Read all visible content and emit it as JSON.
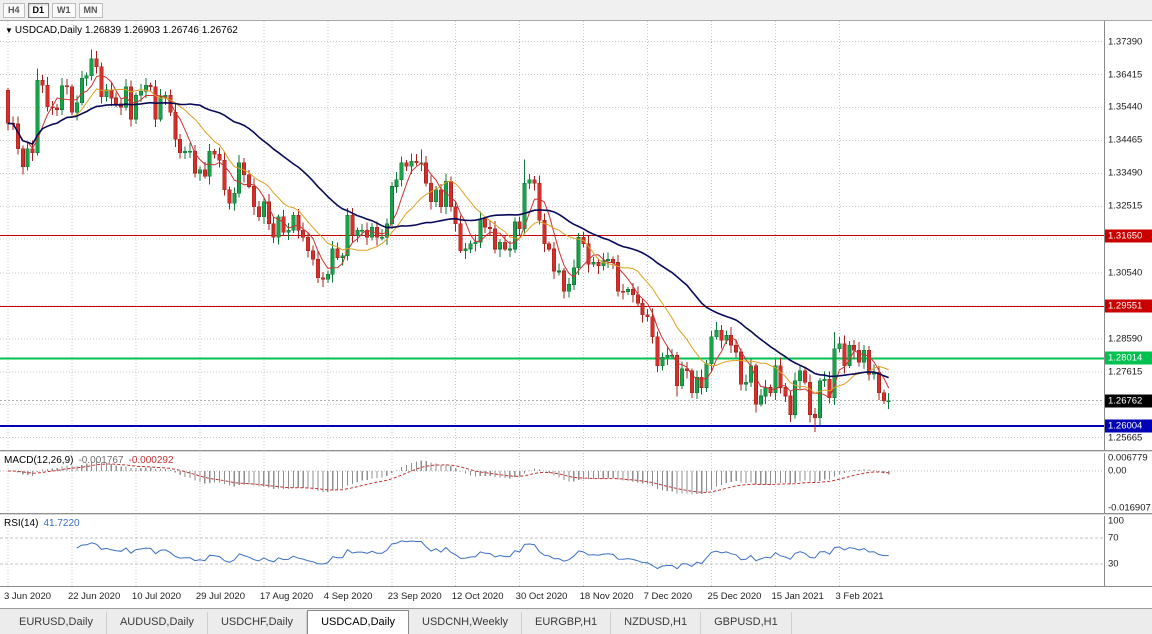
{
  "toolbar": {
    "timeframes": [
      {
        "label": "H4",
        "active": false
      },
      {
        "label": "D1",
        "active": true
      },
      {
        "label": "W1",
        "active": false
      },
      {
        "label": "MN",
        "active": false
      }
    ]
  },
  "chart": {
    "marker": "▼",
    "symbol_label": "USDCAD,Daily",
    "ohlc_label": "1.26839 1.26903 1.26746 1.26762"
  },
  "chart_data": {
    "type": "candlestick",
    "symbol": "USDCAD",
    "period": "Daily",
    "last_values": {
      "open": 1.26839,
      "high": 1.26903,
      "low": 1.26746,
      "close": 1.26762
    },
    "x_labels": [
      "3 Jun 2020",
      "22 Jun 2020",
      "10 Jul 2020",
      "29 Jul 2020",
      "17 Aug 2020",
      "4 Sep 2020",
      "23 Sep 2020",
      "12 Oct 2020",
      "30 Oct 2020",
      "18 Nov 2020",
      "7 Dec 2020",
      "25 Dec 2020",
      "15 Jan 2021",
      "3 Feb 2021"
    ],
    "label_every_bars": 13,
    "first_open": 1.3595,
    "closes": [
      1.3497,
      1.3495,
      1.3422,
      1.3368,
      1.3422,
      1.341,
      1.3625,
      1.361,
      1.3546,
      1.3543,
      1.3538,
      1.3608,
      1.3605,
      1.353,
      1.3558,
      1.363,
      1.3638,
      1.3688,
      1.3664,
      1.3576,
      1.3597,
      1.3572,
      1.3555,
      1.3545,
      1.3605,
      1.351,
      1.358,
      1.3592,
      1.361,
      1.3605,
      1.351,
      1.3575,
      1.358,
      1.353,
      1.345,
      1.341,
      1.3415,
      1.3415,
      1.335,
      1.336,
      1.334,
      1.3415,
      1.3405,
      1.3388,
      1.33,
      1.326,
      1.329,
      1.338,
      1.3345,
      1.331,
      1.325,
      1.322,
      1.3265,
      1.32,
      1.316,
      1.322,
      1.3175,
      1.318,
      1.3225,
      1.318,
      1.316,
      1.312,
      1.3095,
      1.304,
      1.3035,
      1.305,
      1.3125,
      1.31,
      1.3105,
      1.3225,
      1.3165,
      1.318,
      1.318,
      1.316,
      1.319,
      1.316,
      1.316,
      1.32,
      1.331,
      1.333,
      1.338,
      1.337,
      1.3385,
      1.338,
      1.338,
      1.332,
      1.3265,
      1.33,
      1.325,
      1.3325,
      1.325,
      1.32,
      1.312,
      1.3125,
      1.314,
      1.3145,
      1.3215,
      1.319,
      1.3185,
      1.3125,
      1.3145,
      1.3125,
      1.3125,
      1.3205,
      1.3185,
      1.332,
      1.333,
      1.332,
      1.321,
      1.314,
      1.3125,
      1.306,
      1.306,
      1.3,
      1.302,
      1.307,
      1.316,
      1.314,
      1.308,
      1.3085,
      1.3075,
      1.309,
      1.3095,
      1.3085,
      1.3,
      1.2998,
      1.3005,
      1.299,
      1.2965,
      1.293,
      1.2925,
      1.2865,
      1.278,
      1.2805,
      1.281,
      1.281,
      1.272,
      1.277,
      1.2765,
      1.27,
      1.2745,
      1.2715,
      1.2785,
      1.2865,
      1.2885,
      1.2855,
      1.287,
      1.284,
      1.282,
      1.2725,
      1.273,
      1.278,
      1.2665,
      1.269,
      1.2715,
      1.27,
      1.278,
      1.2715,
      1.269,
      1.2635,
      1.2735,
      1.2765,
      1.273,
      1.2635,
      1.2625,
      1.2735,
      1.274,
      1.2685,
      1.283,
      1.2845,
      1.278,
      1.284,
      1.2825,
      1.279,
      1.2825,
      1.2755,
      1.276,
      1.27,
      1.2676,
      1.2676
    ],
    "wick_base": 0.0024,
    "wick_overrides": {
      "6": {
        "high": 1.366
      },
      "17": {
        "high": 1.3715
      },
      "84": {
        "high": 1.342
      },
      "105": {
        "high": 1.339
      },
      "136": {
        "low": 1.2688
      },
      "164": {
        "low": 1.2583
      },
      "168": {
        "high": 1.288
      }
    },
    "price_axis": {
      "min": 1.253,
      "max": 1.38,
      "labels": [
        {
          "text": "1.37390",
          "value": 1.3739
        },
        {
          "text": "1.36415",
          "value": 1.36415
        },
        {
          "text": "1.35440",
          "value": 1.3544
        },
        {
          "text": "1.34465",
          "value": 1.34465
        },
        {
          "text": "1.33490",
          "value": 1.3349
        },
        {
          "text": "1.32515",
          "value": 1.32515
        },
        {
          "text": "1.30540",
          "value": 1.3054
        },
        {
          "text": "1.28590",
          "value": 1.2859
        },
        {
          "text": "1.27615",
          "value": 1.27615
        },
        {
          "text": "1.25665",
          "value": 1.25665
        }
      ],
      "grid_only": [
        1.3154,
        1.29565,
        1.2664
      ]
    },
    "horizontal_lines": [
      {
        "price": 1.3165,
        "label": "1.31650",
        "color": "#c80000",
        "width": 1
      },
      {
        "price": 1.29551,
        "label": "1.29551",
        "color": "#c80000",
        "width": 1
      },
      {
        "price": 1.28014,
        "label": "1.28014",
        "color": "#00c050",
        "width": 2
      },
      {
        "price": 1.26004,
        "label": "1.26004",
        "color": "#0000b4",
        "width": 2
      }
    ],
    "current_price": {
      "value": 1.26762,
      "label": "1.26762",
      "color": "#000000"
    },
    "moving_averages": [
      {
        "period": 5,
        "color": "#d03030",
        "width": 1
      },
      {
        "period": 13,
        "color": "#e0a020",
        "width": 1
      },
      {
        "period": 34,
        "color": "#0a0a5a",
        "width": 1.6
      }
    ],
    "macd": {
      "fast": 12,
      "slow": 26,
      "signal": 9,
      "hist_color": "#8f8f8f",
      "signal_color": "#c43131",
      "scale_max": 0.006779,
      "scale_min": -0.016907
    },
    "rsi": {
      "period": 14,
      "color": "#3a6fc4",
      "scale_min": 0,
      "scale_max": 100,
      "levels": [
        70,
        30
      ]
    },
    "colors": {
      "up_fill": "#19a24a",
      "up_stroke": "#0c7a36",
      "down_fill": "#d2302a",
      "down_stroke": "#a8201b",
      "grid": "#c8c8c8",
      "bid_line": "#b0b0b0"
    }
  },
  "macd_panel": {
    "name_label": "MACD(12,26,9)",
    "value_main": "-0.001767",
    "value_signal": "-0.000292",
    "axis_labels": [
      {
        "text": "0.006779",
        "value": 0.006779
      },
      {
        "text": "0.00",
        "value": 0
      },
      {
        "text": "-0.016907",
        "value": -0.016907
      }
    ]
  },
  "rsi_panel": {
    "name_label": "RSI(14)",
    "value": "41.7220",
    "axis_labels": [
      {
        "text": "100",
        "value": 100
      },
      {
        "text": "70",
        "value": 70
      },
      {
        "text": "30",
        "value": 30
      }
    ]
  },
  "bottom_tabs": {
    "items": [
      {
        "label": "EURUSD,Daily",
        "active": false
      },
      {
        "label": "AUDUSD,Daily",
        "active": false
      },
      {
        "label": "USDCHF,Daily",
        "active": false
      },
      {
        "label": "USDCAD,Daily",
        "active": true
      },
      {
        "label": "USDCNH,Weekly",
        "active": false
      },
      {
        "label": "EURGBP,H1",
        "active": false
      },
      {
        "label": "NZDUSD,H1",
        "active": false
      },
      {
        "label": "GBPUSD,H1",
        "active": false
      }
    ]
  }
}
